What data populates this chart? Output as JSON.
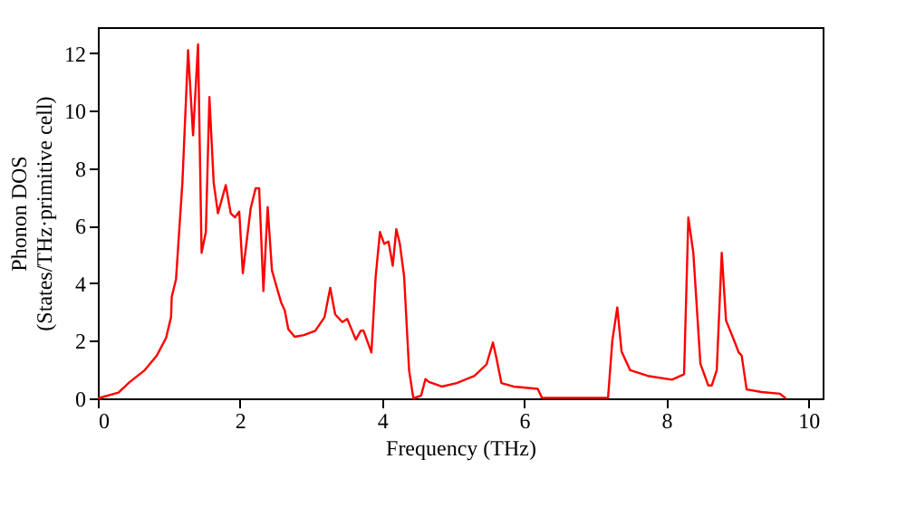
{
  "chart_data": {
    "type": "line",
    "xlabel": "Frequency (THz)",
    "ylabel": "Phonon DOS\n(States/THz·primitive cell)",
    "xlim": [
      0,
      10.2
    ],
    "ylim": [
      0,
      12.9
    ],
    "xticks": [
      0,
      2,
      4,
      6,
      8,
      10
    ],
    "yticks": [
      0,
      2,
      4,
      6,
      8,
      10,
      12
    ],
    "grid": false,
    "line_style": "solid",
    "marker": "none",
    "series": [
      {
        "color": "#ff0000",
        "x": [
          0,
          0.29,
          0.45,
          0.66,
          0.83,
          0.96,
          1.03,
          1.04,
          1.1,
          1.19,
          1.27,
          1.34,
          1.41,
          1.46,
          1.52,
          1.57,
          1.63,
          1.69,
          1.8,
          1.87,
          1.93,
          1.99,
          2.04,
          2.15,
          2.22,
          2.27,
          2.33,
          2.39,
          2.45,
          2.52,
          2.58,
          2.63,
          2.68,
          2.77,
          2.9,
          3.06,
          3.19,
          3.27,
          3.34,
          3.44,
          3.51,
          3.63,
          3.7,
          3.74,
          3.85,
          3.91,
          3.97,
          4.03,
          4.09,
          4.15,
          4.2,
          4.25,
          4.31,
          4.38,
          4.44,
          4.55,
          4.61,
          4.66,
          4.84,
          5.05,
          5.3,
          5.47,
          5.56,
          5.61,
          5.68,
          5.85,
          6.19,
          6.25,
          7.18,
          7.24,
          7.31,
          7.37,
          7.49,
          7.74,
          8.08,
          8.25,
          8.31,
          8.38,
          8.48,
          8.59,
          8.64,
          8.71,
          8.78,
          8.84,
          8.94,
          9.02,
          9.06,
          9.13,
          9.34,
          9.6,
          9.68
        ],
        "values": [
          0,
          0.2,
          0.57,
          0.98,
          1.49,
          2.1,
          2.82,
          3.53,
          4.14,
          7.5,
          12.1,
          9.14,
          12.3,
          5.06,
          5.78,
          10.47,
          7.5,
          6.43,
          7.41,
          6.43,
          6.29,
          6.49,
          4.35,
          6.59,
          7.3,
          7.3,
          3.73,
          6.65,
          4.45,
          3.84,
          3.33,
          3.06,
          2.41,
          2.14,
          2.2,
          2.35,
          2.82,
          3.84,
          2.92,
          2.65,
          2.76,
          2.04,
          2.35,
          2.35,
          1.59,
          4.24,
          5.78,
          5.37,
          5.45,
          4.61,
          5.88,
          5.37,
          4.24,
          0.98,
          0,
          0.1,
          0.67,
          0.57,
          0.41,
          0.53,
          0.78,
          1.18,
          1.94,
          1.39,
          0.53,
          0.41,
          0.33,
          0.02,
          0.02,
          2.0,
          3.16,
          1.63,
          0.98,
          0.78,
          0.65,
          0.84,
          6.29,
          5.06,
          1.2,
          0.45,
          0.45,
          0.98,
          5.06,
          2.71,
          2.1,
          1.59,
          1.49,
          0.31,
          0.22,
          0.16,
          0
        ]
      }
    ]
  }
}
